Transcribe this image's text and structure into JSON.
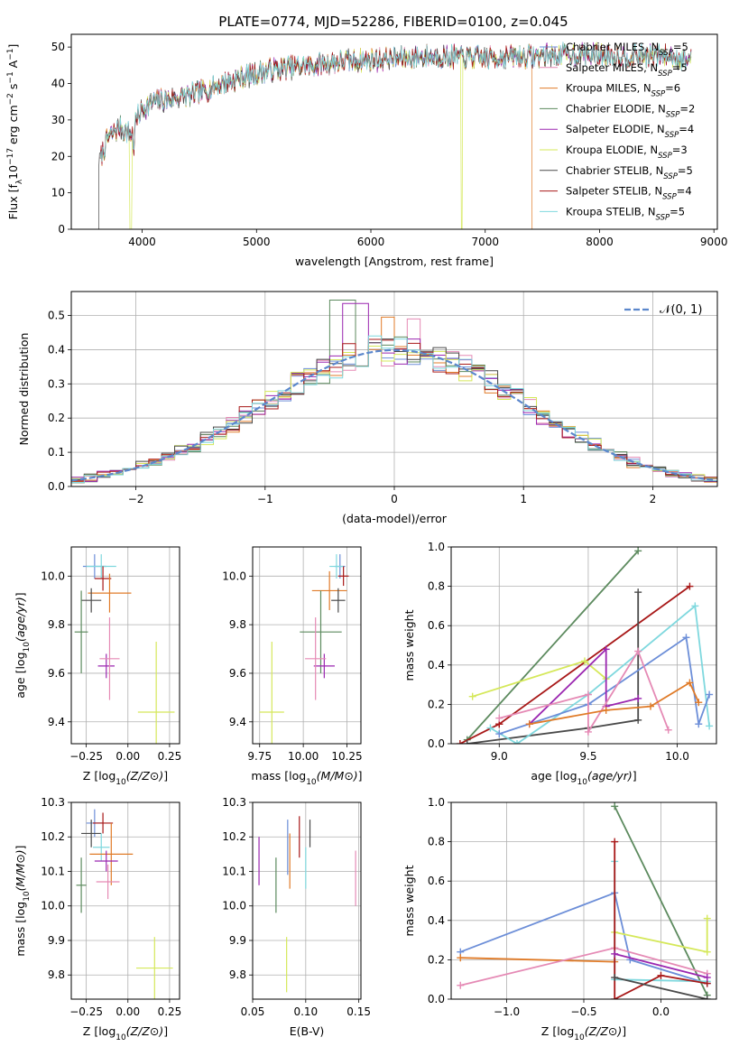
{
  "figure_title": "PLATE=0774, MJD=52286, FIBERID=0100, z=0.045",
  "colors": {
    "Chabrier MILES": "#6c8ed8",
    "Salpeter MILES": "#e58ab5",
    "Kroupa MILES": "#e07b28",
    "Chabrier ELODIE": "#5c8a5e",
    "Salpeter ELODIE": "#9b27b0",
    "Kroupa ELODIE": "#d5e85a",
    "Chabrier STELIB": "#4a4a4a",
    "Salpeter STELIB": "#a81818",
    "Kroupa STELIB": "#7fd8de"
  },
  "chart_data": [
    {
      "id": "spectrum",
      "type": "line",
      "xlabel": "wavelength [Angstrom, rest frame]",
      "ylabel": "Flux [f_λ10^-17 erg cm^-2 s^-1 A^-1]",
      "xlim": [
        3380,
        9030
      ],
      "ylim": [
        0,
        53.5
      ],
      "xticks": [
        4000,
        5000,
        6000,
        7000,
        8000,
        9000
      ],
      "yticks": [
        0,
        10,
        20,
        30,
        40,
        50
      ],
      "grid": false,
      "legend_placement": "right",
      "legend_entries": [
        {
          "name": "Chabrier MILES",
          "nssp": "5"
        },
        {
          "name": "Salpeter MILES",
          "nssp": "5"
        },
        {
          "name": "Kroupa MILES",
          "nssp": "6"
        },
        {
          "name": "Chabrier ELODIE",
          "nssp": "2"
        },
        {
          "name": "Salpeter ELODIE",
          "nssp": "4"
        },
        {
          "name": "Kroupa ELODIE",
          "nssp": "3"
        },
        {
          "name": "Chabrier STELIB",
          "nssp": "5"
        },
        {
          "name": "Salpeter STELIB",
          "nssp": "4"
        },
        {
          "name": "Kroupa STELIB",
          "nssp": "5"
        }
      ],
      "continuum": {
        "x": [
          3620,
          3700,
          3800,
          3900,
          3950,
          4000,
          4100,
          4300,
          4500,
          4700,
          4900,
          5100,
          5300,
          5500,
          5700,
          6000,
          6300,
          6600,
          7000,
          7400,
          7800,
          8200,
          8600,
          8800
        ],
        "y": [
          18,
          25,
          28,
          26,
          30,
          33,
          35,
          36,
          37.5,
          40,
          42,
          43.5,
          44.5,
          45,
          46,
          46.5,
          47,
          47.5,
          47,
          47.5,
          48,
          47.5,
          47.5,
          46.5
        ]
      },
      "drops": [
        {
          "series": "Kroupa ELODIE",
          "x": 3900
        },
        {
          "series": "Kroupa ELODIE",
          "x": 6790
        },
        {
          "series": "Kroupa MILES",
          "x": 7410
        },
        {
          "series": "Chabrier STELIB",
          "x": 3620
        }
      ]
    },
    {
      "id": "residuals",
      "type": "histogram",
      "xlabel": "(data-model)/error",
      "ylabel": "Normed distribution",
      "xlim": [
        -2.5,
        2.5
      ],
      "ylim": [
        0,
        0.57
      ],
      "xticks": [
        -2,
        -1,
        0,
        1,
        2
      ],
      "yticks": [
        0.0,
        0.1,
        0.2,
        0.3,
        0.4,
        0.5
      ],
      "grid": true,
      "bin_width": 0.1,
      "legend_label": "𝒩(0, 1)",
      "legend_placement": "top-right",
      "peaks": [
        {
          "series": "Chabrier ELODIE",
          "x": -0.4,
          "value": 0.545
        },
        {
          "series": "Salpeter ELODIE",
          "x": -0.3,
          "value": 0.535
        },
        {
          "series": "Kroupa MILES",
          "x": -0.05,
          "value": 0.495
        },
        {
          "series": "Salpeter MILES",
          "x": 0.15,
          "value": 0.49
        }
      ]
    },
    {
      "id": "age-vs-Z",
      "type": "errorbar",
      "xlabel": "Z [log10(Z/Z⊙)]",
      "ylabel": "age  [log10(age/yr)]",
      "xlim": [
        -0.34,
        0.31
      ],
      "ylim": [
        9.31,
        10.12
      ],
      "xticks": [
        -0.25,
        0.0,
        0.25
      ],
      "yticks": [
        9.4,
        9.6,
        9.8,
        10.0
      ],
      "grid": true,
      "points": [
        {
          "series": "Chabrier MILES",
          "x": -0.2,
          "y": 10.04,
          "xerr": 0.07,
          "yerr": 0.05
        },
        {
          "series": "Kroupa STELIB",
          "x": -0.16,
          "y": 10.04,
          "xerr": 0.09,
          "yerr": 0.05
        },
        {
          "series": "Salpeter STELIB",
          "x": -0.15,
          "y": 9.99,
          "xerr": 0.05,
          "yerr": 0.05
        },
        {
          "series": "Kroupa MILES",
          "x": -0.11,
          "y": 9.93,
          "xerr": 0.13,
          "yerr": 0.08
        },
        {
          "series": "Chabrier STELIB",
          "x": -0.22,
          "y": 9.9,
          "xerr": 0.06,
          "yerr": 0.05
        },
        {
          "series": "Chabrier ELODIE",
          "x": -0.28,
          "y": 9.77,
          "xerr": 0.04,
          "yerr": 0.17
        },
        {
          "series": "Salpeter ELODIE",
          "x": -0.13,
          "y": 9.63,
          "xerr": 0.05,
          "yerr": 0.05
        },
        {
          "series": "Salpeter MILES",
          "x": -0.11,
          "y": 9.66,
          "xerr": 0.06,
          "yerr": 0.17
        },
        {
          "series": "Kroupa ELODIE",
          "x": 0.17,
          "y": 9.44,
          "xerr": 0.11,
          "yerr": 0.29
        }
      ]
    },
    {
      "id": "age-vs-mass",
      "type": "errorbar",
      "xlabel": "mass [log10(M/M⊙)]",
      "ylabel": "",
      "xlim": [
        9.71,
        10.33
      ],
      "ylim": [
        9.31,
        10.12
      ],
      "xticks": [
        9.75,
        10.0,
        10.25
      ],
      "yticks": [
        9.4,
        9.6,
        9.8,
        10.0
      ],
      "grid": true,
      "points": [
        {
          "series": "Chabrier MILES",
          "x": 10.21,
          "y": 10.04,
          "xerr": 0.03,
          "yerr": 0.05
        },
        {
          "series": "Kroupa STELIB",
          "x": 10.19,
          "y": 10.04,
          "xerr": 0.04,
          "yerr": 0.05
        },
        {
          "series": "Salpeter STELIB",
          "x": 10.23,
          "y": 10.0,
          "xerr": 0.03,
          "yerr": 0.04
        },
        {
          "series": "Kroupa MILES",
          "x": 10.15,
          "y": 9.94,
          "xerr": 0.1,
          "yerr": 0.08
        },
        {
          "series": "Chabrier STELIB",
          "x": 10.2,
          "y": 9.9,
          "xerr": 0.04,
          "yerr": 0.05
        },
        {
          "series": "Chabrier ELODIE",
          "x": 10.1,
          "y": 9.77,
          "xerr": 0.12,
          "yerr": 0.17
        },
        {
          "series": "Salpeter ELODIE",
          "x": 10.12,
          "y": 9.63,
          "xerr": 0.06,
          "yerr": 0.05
        },
        {
          "series": "Salpeter MILES",
          "x": 10.07,
          "y": 9.66,
          "xerr": 0.06,
          "yerr": 0.17
        },
        {
          "series": "Kroupa ELODIE",
          "x": 9.82,
          "y": 9.44,
          "xerr": 0.07,
          "yerr": 0.29
        }
      ]
    },
    {
      "id": "mass-weight-vs-age",
      "type": "line",
      "xlabel": "age  [log10(age/yr)]",
      "ylabel": "mass weight",
      "xlim": [
        8.73,
        10.22
      ],
      "ylim": [
        0,
        1.0
      ],
      "xticks": [
        9.0,
        9.5,
        10.0
      ],
      "yticks": [
        0.0,
        0.2,
        0.4,
        0.6,
        0.8,
        1.0
      ],
      "grid": true,
      "series": [
        {
          "name": "Chabrier ELODIE",
          "x": [
            8.82,
            9.78
          ],
          "y": [
            0.02,
            0.98
          ]
        },
        {
          "name": "Salpeter STELIB",
          "x": [
            8.78,
            9.0,
            9.0,
            10.07
          ],
          "y": [
            0.0,
            0.1,
            0.1,
            0.8
          ]
        },
        {
          "name": "Chabrier STELIB",
          "x": [
            8.82,
            9.5,
            9.78,
            9.78
          ],
          "y": [
            0.0,
            0.08,
            0.12,
            0.77
          ]
        },
        {
          "name": "Kroupa STELIB",
          "x": [
            8.95,
            9.1,
            9.5,
            10.1,
            10.18
          ],
          "y": [
            0.08,
            0.0,
            0.25,
            0.7,
            0.09
          ]
        },
        {
          "name": "Chabrier MILES",
          "x": [
            9.0,
            9.5,
            10.05,
            10.12,
            10.18
          ],
          "y": [
            0.05,
            0.2,
            0.54,
            0.1,
            0.25
          ]
        },
        {
          "name": "Kroupa ELODIE",
          "x": [
            8.85,
            9.48,
            9.6
          ],
          "y": [
            0.24,
            0.42,
            0.33
          ]
        },
        {
          "name": "Salpeter ELODIE",
          "x": [
            9.17,
            9.6,
            9.6,
            9.78
          ],
          "y": [
            0.1,
            0.48,
            0.19,
            0.23
          ]
        },
        {
          "name": "Salpeter MILES",
          "x": [
            9.0,
            9.5,
            9.5,
            9.78,
            9.95
          ],
          "y": [
            0.13,
            0.25,
            0.06,
            0.47,
            0.07
          ]
        },
        {
          "name": "Kroupa MILES",
          "x": [
            9.17,
            9.6,
            9.85,
            10.07,
            10.12
          ],
          "y": [
            0.1,
            0.17,
            0.19,
            0.31,
            0.21
          ]
        }
      ]
    },
    {
      "id": "mass-vs-Z",
      "type": "errorbar",
      "xlabel": "Z [log10(Z/Z⊙)]",
      "ylabel": "mass [log10(M/M⊙)]",
      "xlim": [
        -0.34,
        0.31
      ],
      "ylim": [
        9.73,
        10.3
      ],
      "xticks": [
        -0.25,
        0.0,
        0.25
      ],
      "yticks": [
        9.8,
        9.9,
        10.0,
        10.1,
        10.2,
        10.3
      ],
      "grid": true,
      "points": [
        {
          "series": "Chabrier MILES",
          "x": -0.2,
          "y": 10.24,
          "xerr": 0.05,
          "yerr": 0.04
        },
        {
          "series": "Salpeter STELIB",
          "x": -0.15,
          "y": 10.24,
          "xerr": 0.06,
          "yerr": 0.03
        },
        {
          "series": "Chabrier STELIB",
          "x": -0.22,
          "y": 10.21,
          "xerr": 0.06,
          "yerr": 0.04
        },
        {
          "series": "Kroupa STELIB",
          "x": -0.16,
          "y": 10.17,
          "xerr": 0.05,
          "yerr": 0.04
        },
        {
          "series": "Kroupa MILES",
          "x": -0.1,
          "y": 10.15,
          "xerr": 0.13,
          "yerr": 0.09
        },
        {
          "series": "Salpeter ELODIE",
          "x": -0.13,
          "y": 10.13,
          "xerr": 0.07,
          "yerr": 0.03
        },
        {
          "series": "Chabrier ELODIE",
          "x": -0.28,
          "y": 10.06,
          "xerr": 0.03,
          "yerr": 0.08
        },
        {
          "series": "Salpeter MILES",
          "x": -0.12,
          "y": 10.07,
          "xerr": 0.07,
          "yerr": 0.05
        },
        {
          "series": "Kroupa ELODIE",
          "x": 0.16,
          "y": 9.82,
          "xerr": 0.11,
          "yerr": 0.09
        }
      ]
    },
    {
      "id": "mass-vs-ebv",
      "type": "errorbar",
      "xlabel": "E(B-V)",
      "ylabel": "",
      "xlim": [
        0.05,
        0.152
      ],
      "ylim": [
        9.73,
        10.3
      ],
      "xticks": [
        0.05,
        0.1,
        0.15
      ],
      "yticks": [
        9.8,
        9.9,
        10.0,
        10.1,
        10.2,
        10.3
      ],
      "grid": true,
      "points": [
        {
          "series": "Salpeter ELODIE",
          "x": 0.056,
          "y": 10.13,
          "xerr": 0,
          "yerr": 0.07
        },
        {
          "series": "Chabrier ELODIE",
          "x": 0.072,
          "y": 10.06,
          "xerr": 0,
          "yerr": 0.08
        },
        {
          "series": "Kroupa ELODIE",
          "x": 0.082,
          "y": 9.83,
          "xerr": 0,
          "yerr": 0.08
        },
        {
          "series": "Chabrier MILES",
          "x": 0.083,
          "y": 10.17,
          "xerr": 0,
          "yerr": 0.08
        },
        {
          "series": "Kroupa MILES",
          "x": 0.085,
          "y": 10.13,
          "xerr": 0,
          "yerr": 0.08
        },
        {
          "series": "Salpeter STELIB",
          "x": 0.094,
          "y": 10.2,
          "xerr": 0,
          "yerr": 0.06
        },
        {
          "series": "Kroupa STELIB",
          "x": 0.1,
          "y": 10.11,
          "xerr": 0,
          "yerr": 0.06
        },
        {
          "series": "Chabrier STELIB",
          "x": 0.104,
          "y": 10.21,
          "xerr": 0,
          "yerr": 0.04
        },
        {
          "series": "Salpeter MILES",
          "x": 0.147,
          "y": 10.08,
          "xerr": 0,
          "yerr": 0.08
        }
      ]
    },
    {
      "id": "mass-weight-vs-Z",
      "type": "line",
      "xlabel": "Z [log10(Z/Z⊙)]",
      "ylabel": "mass weight",
      "xlim": [
        -1.36,
        0.36
      ],
      "ylim": [
        0,
        1.0
      ],
      "xticks": [
        -1.0,
        -0.5,
        0.0
      ],
      "yticks": [
        0.0,
        0.2,
        0.4,
        0.6,
        0.8,
        1.0
      ],
      "grid": true,
      "series": [
        {
          "name": "Chabrier ELODIE",
          "x": [
            -0.3,
            0.3
          ],
          "y": [
            0.98,
            0.02
          ]
        },
        {
          "name": "Chabrier MILES",
          "x": [
            -1.3,
            -0.3,
            -0.2,
            0.3
          ],
          "y": [
            0.24,
            0.54,
            0.2,
            0.08
          ]
        },
        {
          "name": "Kroupa MILES",
          "x": [
            -1.3,
            -0.3
          ],
          "y": [
            0.21,
            0.19
          ]
        },
        {
          "name": "Salpeter MILES",
          "x": [
            -1.3,
            -0.3,
            0.3
          ],
          "y": [
            0.07,
            0.26,
            0.13
          ]
        },
        {
          "name": "Kroupa STELIB",
          "x": [
            -0.3,
            -0.3,
            0.3
          ],
          "y": [
            0.7,
            0.1,
            0.09
          ]
        },
        {
          "name": "Kroupa ELODIE",
          "x": [
            -0.3,
            0.3,
            0.3
          ],
          "y": [
            0.34,
            0.24,
            0.41
          ]
        },
        {
          "name": "Salpeter STELIB",
          "x": [
            -0.3,
            -0.3,
            0.0,
            0.3
          ],
          "y": [
            0.8,
            0.0,
            0.12,
            0.08
          ]
        },
        {
          "name": "Salpeter ELODIE",
          "x": [
            -0.3,
            0.3
          ],
          "y": [
            0.23,
            0.11
          ]
        },
        {
          "name": "Chabrier STELIB",
          "x": [
            -0.3,
            0.3
          ],
          "y": [
            0.11,
            0.0
          ]
        }
      ]
    }
  ]
}
